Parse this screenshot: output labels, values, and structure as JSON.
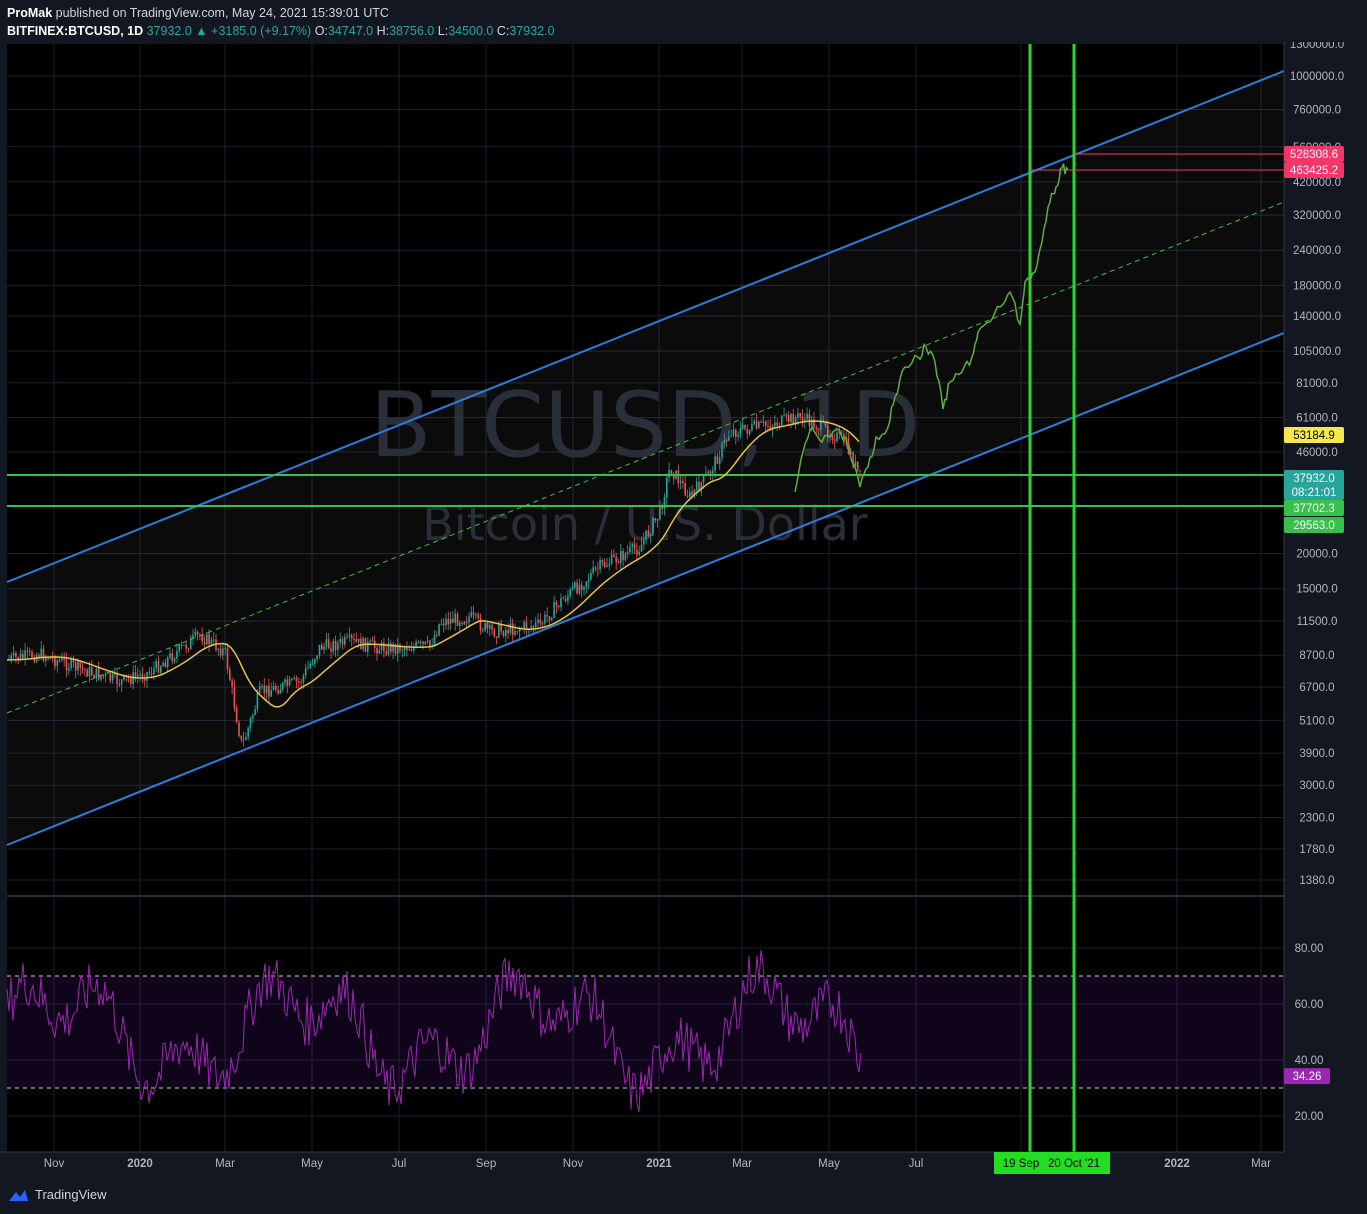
{
  "header": {
    "publisher": "ProMak",
    "published_text": "published on TradingView.com, May 24, 2021 15:39:01 UTC",
    "symbol": "BITFINEX:BTCUSD, 1D",
    "last": "37932.0",
    "change": "+3185.0 (+9.17%)",
    "o_label": "O:",
    "o": "34747.0",
    "h_label": "H:",
    "h": "38756.0",
    "l_label": "L:",
    "l": "34500.0",
    "c_label": "C:",
    "c": "37932.0"
  },
  "watermark": {
    "title": "BTCUSD, 1D",
    "subtitle": "Bitcoin / U.S. Dollar"
  },
  "footer": {
    "brand": "TradingView"
  },
  "colors": {
    "background": "#131722",
    "channel": "#2b7ede",
    "projection": "#5eae3e",
    "ma": "#e2c24a",
    "rsi": "#9c27b0",
    "hline": "#37c14a",
    "vline": "#22dd22",
    "up": "#26a69a",
    "down": "#ef5350"
  },
  "chart_data": [
    {
      "type": "candlestick",
      "scale": "log",
      "y_ticks": [
        1380,
        1780,
        2300,
        3000,
        3900,
        5100,
        6700,
        8700,
        11500,
        15000,
        20000,
        29563,
        37702.3,
        46000,
        61000,
        81000,
        105000,
        140000,
        180000,
        240000,
        320000,
        420000,
        560000,
        760000,
        1000000,
        1300000
      ],
      "y_tick_labels": [
        "1380.0",
        "1780.0",
        "2300.0",
        "3000.0",
        "3900.0",
        "5100.0",
        "6700.0",
        "8700.0",
        "11500.0",
        "15000.0",
        "20000.0",
        "29563.0",
        "37702.3",
        "46000.0",
        "61000.0",
        "81000.0",
        "105000.0",
        "140000.0",
        "180000.0",
        "240000.0",
        "320000.0",
        "420000.0",
        "560000.0",
        "760000.0",
        "1000000.0",
        "1300000.0"
      ],
      "x_labels": [
        "Nov",
        "2020",
        "Mar",
        "May",
        "Jul",
        "Sep",
        "Nov",
        "2021",
        "Mar",
        "May",
        "Jul",
        "19 Sep",
        "20 Oct '21",
        "2022",
        "Mar"
      ],
      "price_labels": [
        {
          "text": "528308.6",
          "value": 528308.6,
          "color": "#f23667"
        },
        {
          "text": "463425.2",
          "value": 463425.2,
          "color": "#f23667"
        },
        {
          "text": "53184.9",
          "value": 53184.9,
          "color": "#f5e94a"
        },
        {
          "text": "37932.0",
          "value": 37932.0,
          "color": "#26a69a",
          "sub": "08:21:01"
        },
        {
          "text": "37702.3",
          "value": 37702.3,
          "color": "#37c14a"
        },
        {
          "text": "29563.0",
          "value": 29563.0,
          "color": "#37c14a"
        }
      ],
      "horizontal_lines": [
        37932.0,
        29563.0
      ],
      "vertical_lines": [
        "19 Sep",
        "20 Oct '21"
      ],
      "annotations": [
        "parallel channel",
        "channel midline",
        "50-day moving average",
        "fractal projection"
      ]
    },
    {
      "type": "line",
      "name": "RSI",
      "y_ticks": [
        20,
        40,
        60,
        80
      ],
      "y_tick_labels": [
        "20.00",
        "40.00",
        "60.00",
        "80.00"
      ],
      "bands": [
        30,
        70
      ],
      "last": {
        "text": "34.26",
        "value": 34.26
      }
    }
  ]
}
